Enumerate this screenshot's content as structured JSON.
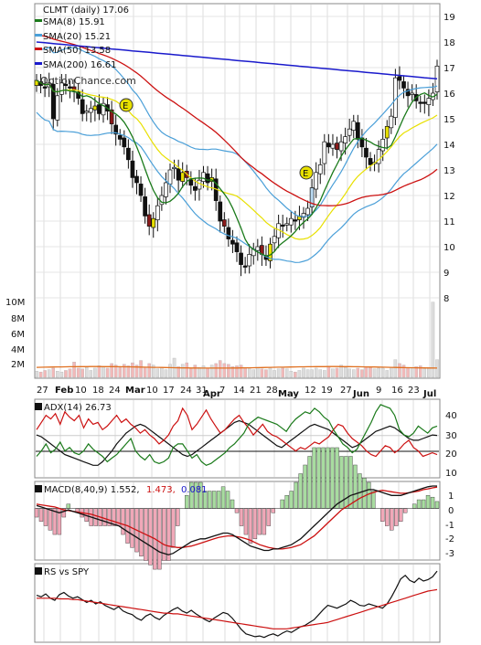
{
  "chart_data": [
    {
      "type": "candlestick",
      "title": "CLMT (daily) 17.06",
      "watermark": "OptionChance.com",
      "legend": [
        {
          "label": "SMA(8) 15.91",
          "color": "#1a7a1a"
        },
        {
          "label": "SMA(20) 15.21",
          "color": "#4a9fd8"
        },
        {
          "label": "SMA(50) 13.58",
          "color": "#cc1111"
        },
        {
          "label": "SMA(200) 16.61",
          "color": "#1a1acc"
        }
      ],
      "price_ticks": [
        "19",
        "18",
        "17",
        "16",
        "15",
        "14",
        "13",
        "12",
        "11",
        "10",
        "9",
        "8"
      ],
      "volume_ticks": [
        "10M",
        "8M",
        "6M",
        "4M",
        "2M"
      ],
      "x_labels": [
        "27",
        "Feb",
        "10",
        "18",
        "24",
        "Mar",
        "10",
        "17",
        "24",
        "31",
        "Apr",
        "7",
        "14",
        "21",
        "28",
        "May",
        "12",
        "19",
        "27",
        "Jun",
        "9",
        "16",
        "23",
        "Jul"
      ],
      "earnings_markers": [
        "E",
        "E"
      ],
      "ylim": [
        8,
        19
      ],
      "close": [
        16.5,
        16.3,
        16.2,
        16.4,
        15.0,
        15.9,
        16.4,
        16.3,
        16.2,
        16.1,
        15.8,
        15.2,
        15.3,
        15.4,
        15.5,
        15.2,
        15.6,
        15.3,
        14.8,
        14.4,
        14.2,
        13.9,
        13.4,
        12.7,
        12.5,
        12.0,
        11.2,
        10.8,
        11.1,
        11.6,
        12.0,
        12.5,
        13.0,
        13.1,
        12.6,
        12.9,
        12.7,
        12.4,
        12.2,
        12.6,
        12.9,
        12.5,
        12.7,
        11.8,
        11.0,
        10.8,
        10.3,
        10.1,
        9.8,
        9.3,
        9.2,
        9.7,
        9.9,
        10.0,
        9.7,
        9.5,
        10.1,
        10.4,
        10.9,
        10.8,
        10.9,
        11.1,
        11.0,
        11.2,
        11.3,
        11.5,
        12.3,
        12.9,
        13.2,
        14.1,
        13.9,
        14.0,
        13.8,
        14.1,
        14.3,
        14.6,
        14.9,
        14.2,
        13.9,
        13.5,
        13.2,
        13.3,
        13.8,
        14.2,
        14.7,
        15.1,
        16.6,
        16.5,
        16.2,
        15.9,
        16.0,
        15.7,
        15.6,
        15.6,
        15.8,
        16.0,
        17.06
      ],
      "volume_m": [
        0.8,
        0.7,
        0.9,
        1.0,
        1.2,
        0.8,
        0.7,
        0.9,
        1.1,
        2.0,
        1.2,
        1.1,
        1.3,
        0.9,
        1.2,
        1.5,
        1.4,
        1.2,
        1.8,
        1.6,
        1.3,
        1.7,
        1.5,
        1.9,
        1.6,
        2.2,
        1.3,
        1.8,
        1.6,
        1.1,
        1.3,
        1.0,
        1.7,
        2.5,
        1.4,
        1.7,
        1.9,
        1.2,
        1.6,
        1.3,
        1.5,
        1.2,
        1.6,
        1.8,
        2.2,
        1.8,
        1.7,
        1.4,
        1.5,
        1.6,
        1.2,
        1.1,
        1.0,
        1.3,
        1.1,
        1.0,
        1.2,
        0.9,
        1.1,
        1.2,
        1.1,
        0.8,
        0.7,
        0.9,
        1.2,
        1.0,
        1.0,
        1.2,
        1.0,
        0.9,
        1.4,
        1.1,
        1.2,
        1.6,
        1.3,
        1.1,
        1.0,
        1.2,
        1.0,
        1.4,
        1.3,
        1.1,
        1.2,
        1.2,
        0.9,
        1.3,
        2.3,
        1.8,
        1.6,
        1.3,
        1.2,
        1.4,
        1.5,
        1.1,
        1.3,
        9.8,
        2.3
      ]
    },
    {
      "type": "line",
      "label": "ADX(14) 26.73",
      "y_ticks": [
        "40",
        "30",
        "20",
        "10"
      ],
      "ylim": [
        5,
        45
      ],
      "series": [
        {
          "color": "#111111",
          "values": [
            27,
            26,
            24,
            22,
            20,
            18,
            16,
            15,
            14,
            13,
            12,
            11,
            10,
            10,
            12,
            15,
            18,
            22,
            25,
            28,
            30,
            32,
            33,
            32,
            30,
            28,
            26,
            24,
            22,
            20,
            18,
            16,
            15,
            16,
            18,
            20,
            22,
            24,
            26,
            28,
            30,
            32,
            34,
            35,
            34,
            33,
            31,
            29,
            27,
            25,
            23,
            21,
            20,
            22,
            24,
            26,
            28,
            30,
            32,
            33,
            32,
            31,
            30,
            28,
            26,
            24,
            22,
            20,
            21,
            23,
            25,
            27,
            29,
            30,
            31,
            32,
            31,
            29,
            27,
            25,
            24,
            24,
            25,
            26,
            27,
            26.73
          ]
        },
        {
          "color": "#cc1111",
          "values": [
            30,
            34,
            38,
            36,
            39,
            33,
            40,
            37,
            35,
            38,
            31,
            36,
            33,
            34,
            30,
            32,
            35,
            38,
            34,
            36,
            33,
            31,
            28,
            30,
            27,
            25,
            22,
            24,
            27,
            32,
            35,
            42,
            38,
            30,
            33,
            37,
            41,
            36,
            32,
            28,
            30,
            33,
            36,
            38,
            34,
            31,
            27,
            30,
            33,
            29,
            27,
            26,
            24,
            22,
            20,
            18,
            20,
            19,
            21,
            23,
            22,
            24,
            26,
            30,
            33,
            32,
            28,
            25,
            23,
            21,
            18,
            16,
            15,
            18,
            21,
            20,
            17,
            19,
            22,
            24,
            20,
            18,
            15,
            16,
            17,
            16
          ]
        },
        {
          "color": "#1a7a1a",
          "values": [
            15,
            18,
            22,
            17,
            19,
            23,
            18,
            20,
            17,
            16,
            18,
            22,
            19,
            17,
            15,
            12,
            14,
            16,
            19,
            22,
            25,
            18,
            15,
            13,
            16,
            12,
            11,
            12,
            14,
            20,
            22,
            22,
            18,
            14,
            16,
            12,
            10,
            11,
            13,
            15,
            17,
            20,
            22,
            25,
            28,
            33,
            35,
            37,
            36,
            35,
            34,
            33,
            31,
            29,
            33,
            36,
            38,
            40,
            39,
            42,
            40,
            37,
            35,
            30,
            26,
            22,
            20,
            17,
            19,
            24,
            29,
            34,
            40,
            44,
            43,
            42,
            38,
            30,
            27,
            26,
            28,
            32,
            30,
            28,
            31,
            32
          ]
        }
      ]
    },
    {
      "type": "line",
      "label": "MACD(8,40,9) 1.552,",
      "values_text": [
        "1.473,",
        "0.081"
      ],
      "values_colors": [
        "#cc1111",
        "#1a1acc"
      ],
      "y_ticks": [
        "1",
        "0",
        "-1",
        "-2",
        "-3"
      ],
      "ylim": [
        -3.5,
        1.8
      ],
      "macd": [
        0.2,
        0.1,
        0.0,
        -0.1,
        -0.2,
        -0.3,
        -0.2,
        -0.1,
        -0.2,
        -0.3,
        -0.4,
        -0.5,
        -0.6,
        -0.7,
        -0.8,
        -0.9,
        -1.0,
        -1.1,
        -1.2,
        -1.4,
        -1.6,
        -1.8,
        -2.0,
        -2.2,
        -2.4,
        -2.6,
        -2.8,
        -3.0,
        -3.1,
        -3.2,
        -3.1,
        -2.9,
        -2.7,
        -2.5,
        -2.3,
        -2.2,
        -2.1,
        -2.1,
        -2.0,
        -1.9,
        -1.8,
        -1.7,
        -1.7,
        -1.8,
        -2.0,
        -2.2,
        -2.4,
        -2.6,
        -2.7,
        -2.8,
        -2.9,
        -2.9,
        -2.8,
        -2.8,
        -2.7,
        -2.6,
        -2.5,
        -2.3,
        -2.1,
        -1.8,
        -1.5,
        -1.2,
        -0.9,
        -0.6,
        -0.3,
        0.0,
        0.3,
        0.5,
        0.7,
        0.9,
        1.0,
        1.1,
        1.2,
        1.3,
        1.3,
        1.2,
        1.1,
        1.0,
        0.9,
        0.9,
        0.9,
        1.0,
        1.1,
        1.2,
        1.3,
        1.4,
        1.5,
        1.55,
        1.55
      ],
      "signal": [
        0.3,
        0.25,
        0.2,
        0.15,
        0.1,
        0.0,
        -0.1,
        -0.15,
        -0.2,
        -0.25,
        -0.3,
        -0.35,
        -0.4,
        -0.5,
        -0.6,
        -0.7,
        -0.8,
        -0.9,
        -1.0,
        -1.1,
        -1.2,
        -1.35,
        -1.5,
        -1.65,
        -1.8,
        -1.95,
        -2.1,
        -2.3,
        -2.5,
        -2.6,
        -2.65,
        -2.7,
        -2.7,
        -2.65,
        -2.6,
        -2.5,
        -2.4,
        -2.3,
        -2.2,
        -2.1,
        -2.0,
        -1.95,
        -1.9,
        -1.9,
        -1.95,
        -2.0,
        -2.1,
        -2.2,
        -2.35,
        -2.5,
        -2.6,
        -2.7,
        -2.75,
        -2.8,
        -2.8,
        -2.75,
        -2.7,
        -2.6,
        -2.5,
        -2.3,
        -2.1,
        -1.9,
        -1.6,
        -1.3,
        -1.0,
        -0.7,
        -0.4,
        -0.1,
        0.1,
        0.3,
        0.5,
        0.7,
        0.85,
        1.0,
        1.1,
        1.2,
        1.25,
        1.2,
        1.15,
        1.1,
        1.05,
        1.05,
        1.1,
        1.15,
        1.2,
        1.3,
        1.35,
        1.42,
        1.47
      ]
    },
    {
      "type": "line",
      "label": "RS vs SPY",
      "series": [
        {
          "color": "#111111",
          "values": [
            0.62,
            0.6,
            0.64,
            0.58,
            0.55,
            0.63,
            0.66,
            0.61,
            0.58,
            0.6,
            0.56,
            0.52,
            0.55,
            0.5,
            0.53,
            0.48,
            0.45,
            0.42,
            0.46,
            0.4,
            0.37,
            0.35,
            0.3,
            0.27,
            0.33,
            0.36,
            0.31,
            0.28,
            0.34,
            0.38,
            0.42,
            0.45,
            0.4,
            0.37,
            0.41,
            0.36,
            0.32,
            0.28,
            0.25,
            0.3,
            0.34,
            0.38,
            0.36,
            0.3,
            0.22,
            0.14,
            0.08,
            0.06,
            0.04,
            0.05,
            0.03,
            0.06,
            0.08,
            0.05,
            0.09,
            0.12,
            0.1,
            0.14,
            0.18,
            0.2,
            0.24,
            0.28,
            0.35,
            0.42,
            0.48,
            0.46,
            0.44,
            0.47,
            0.5,
            0.55,
            0.52,
            0.48,
            0.47,
            0.5,
            0.48,
            0.46,
            0.44,
            0.5,
            0.6,
            0.72,
            0.85,
            0.9,
            0.83,
            0.8,
            0.86,
            0.82,
            0.84,
            0.88,
            0.96
          ]
        },
        {
          "color": "#cc1111",
          "values": [
            0.58,
            0.58,
            0.58,
            0.58,
            0.58,
            0.57,
            0.57,
            0.57,
            0.56,
            0.56,
            0.55,
            0.54,
            0.53,
            0.52,
            0.51,
            0.5,
            0.49,
            0.48,
            0.47,
            0.46,
            0.45,
            0.44,
            0.43,
            0.42,
            0.41,
            0.4,
            0.39,
            0.38,
            0.37,
            0.37,
            0.36,
            0.36,
            0.35,
            0.34,
            0.33,
            0.32,
            0.31,
            0.3,
            0.29,
            0.28,
            0.27,
            0.26,
            0.25,
            0.24,
            0.23,
            0.22,
            0.21,
            0.2,
            0.19,
            0.18,
            0.17,
            0.16,
            0.15,
            0.15,
            0.15,
            0.15,
            0.16,
            0.17,
            0.18,
            0.19,
            0.2,
            0.21,
            0.22,
            0.23,
            0.24,
            0.26,
            0.28,
            0.3,
            0.32,
            0.34,
            0.36,
            0.38,
            0.4,
            0.42,
            0.44,
            0.46,
            0.48,
            0.5,
            0.52,
            0.54,
            0.56,
            0.58,
            0.6,
            0.62,
            0.64,
            0.66,
            0.68,
            0.69,
            0.7
          ]
        }
      ]
    }
  ]
}
